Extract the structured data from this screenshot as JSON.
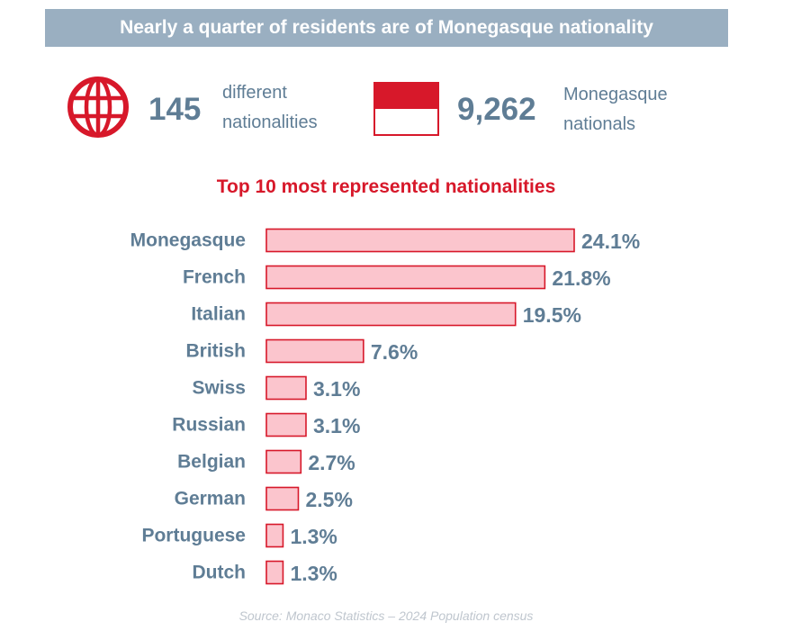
{
  "banner": {
    "title": "Nearly a quarter of residents are of Monegasque nationality"
  },
  "stats": {
    "nationalities": {
      "icon": "globe-icon",
      "number": "145",
      "label_line1": "different",
      "label_line2": "nationalities"
    },
    "nationals": {
      "icon": "monaco-flag-icon",
      "number": "9,262",
      "label_line1": "Monegasque",
      "label_line2": "nationals"
    }
  },
  "colors": {
    "accent_red": "#d7182a",
    "bar_fill": "#fbc5cd",
    "text_slate": "#5f7d95",
    "banner_bg": "#9aafc1"
  },
  "chart_data": {
    "type": "bar",
    "orientation": "horizontal",
    "title": "Top 10 most represented nationalities",
    "categories": [
      "Monegasque",
      "French",
      "Italian",
      "British",
      "Swiss",
      "Russian",
      "Belgian",
      "German",
      "Portuguese",
      "Dutch"
    ],
    "values": [
      24.1,
      21.8,
      19.5,
      7.6,
      3.1,
      3.1,
      2.7,
      2.5,
      1.3,
      1.3
    ],
    "value_labels": [
      "24.1%",
      "21.8%",
      "19.5%",
      "7.6%",
      "3.1%",
      "3.1%",
      "2.7%",
      "2.5%",
      "1.3%",
      "1.3%"
    ],
    "unit": "%",
    "xlabel": "",
    "ylabel": "",
    "xlim": [
      0,
      24.1
    ],
    "grid": false,
    "legend": "none"
  },
  "footer": {
    "source": "Source: Monaco Statistics – 2024 Population census"
  }
}
